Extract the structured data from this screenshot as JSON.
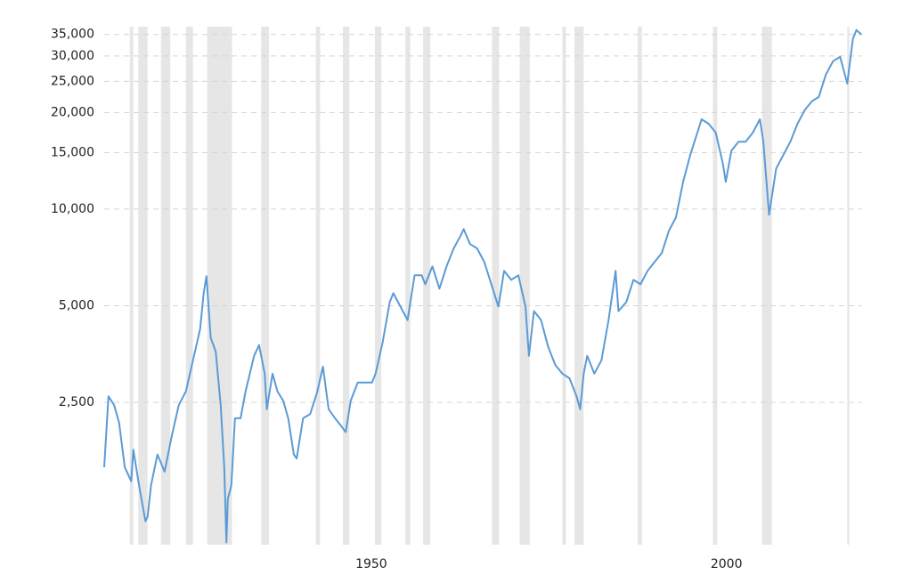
{
  "chart_data": {
    "type": "line",
    "log_scale": true,
    "grid": true,
    "recession_color": "#e6e6e6",
    "recessions": [
      [
        1916.0,
        1916.5
      ],
      [
        1917.2,
        1918.5
      ],
      [
        1920.4,
        1921.7
      ],
      [
        1923.9,
        1924.9
      ],
      [
        1926.9,
        1930.4
      ],
      [
        1934.5,
        1935.6
      ],
      [
        1942.2,
        1942.8
      ],
      [
        1946.0,
        1946.9
      ],
      [
        1950.5,
        1951.4
      ],
      [
        1954.8,
        1955.5
      ],
      [
        1957.3,
        1958.3
      ],
      [
        1967.0,
        1968.0
      ],
      [
        1970.9,
        1972.3
      ],
      [
        1976.9,
        1977.4
      ],
      [
        1978.6,
        1979.9
      ],
      [
        1987.5,
        1988.1
      ],
      [
        1998.1,
        1998.7
      ],
      [
        2005.0,
        2006.4
      ],
      [
        2017.0,
        2017.3
      ]
    ],
    "x": [
      1912.4,
      1913.0,
      1913.8,
      1914.5,
      1915.3,
      1916.2,
      1916.5,
      1917.3,
      1918.2,
      1918.5,
      1919.0,
      1919.9,
      1920.9,
      1921.9,
      1922.9,
      1923.9,
      1924.9,
      1925.9,
      1926.4,
      1926.8,
      1927.4,
      1928.1,
      1928.8,
      1929.3,
      1929.6,
      1929.8,
      1930.3,
      1930.8,
      1931.6,
      1932.3,
      1933.5,
      1934.2,
      1935.0,
      1935.3,
      1936.1,
      1936.8,
      1937.6,
      1938.3,
      1939.1,
      1939.5,
      1940.4,
      1941.4,
      1942.4,
      1943.2,
      1944.0,
      1944.9,
      1945.9,
      1946.4,
      1947.1,
      1948.1,
      1949.1,
      1950.1,
      1950.6,
      1951.6,
      1952.6,
      1953.1,
      1954.1,
      1955.1,
      1956.1,
      1957.1,
      1957.6,
      1958.6,
      1959.6,
      1960.6,
      1961.6,
      1962.6,
      1963.0,
      1963.9,
      1964.9,
      1965.9,
      1966.9,
      1967.9,
      1968.7,
      1969.7,
      1970.7,
      1971.7,
      1972.2,
      1972.9,
      1973.9,
      1974.9,
      1975.9,
      1976.9,
      1977.9,
      1978.9,
      1979.4,
      1979.9,
      1980.4,
      1981.4,
      1982.4,
      1983.4,
      1984.4,
      1984.8,
      1985.9,
      1986.9,
      1987.9,
      1988.9,
      1989.9,
      1990.9,
      1991.9,
      1992.9,
      1993.9,
      1994.9,
      1995.9,
      1996.5,
      1997.5,
      1998.5,
      1999.5,
      1999.9,
      2000.7,
      2001.7,
      2002.7,
      2003.7,
      2004.7,
      2005.2,
      2006.0,
      2007.0,
      2008.0,
      2009.0,
      2010.0,
      2011.0,
      2012.0,
      2013.0,
      2014.0,
      2015.0,
      2016.0,
      2017.0,
      2017.8,
      2018.3,
      2019.0
    ],
    "series": [
      {
        "color": "#5b9bd5",
        "values": [
          1570,
          2610,
          2450,
          2160,
          1570,
          1420,
          1780,
          1380,
          1065,
          1100,
          1380,
          1720,
          1520,
          1960,
          2450,
          2700,
          3380,
          4230,
          5470,
          6180,
          3970,
          3600,
          2450,
          1570,
          915,
          1250,
          1380,
          2230,
          2230,
          2700,
          3490,
          3770,
          3070,
          2380,
          3070,
          2700,
          2530,
          2230,
          1720,
          1670,
          2230,
          2300,
          2700,
          3230,
          2380,
          2230,
          2090,
          2020,
          2530,
          2880,
          2880,
          2880,
          3070,
          3840,
          5130,
          5470,
          4970,
          4510,
          6220,
          6220,
          5830,
          6630,
          5650,
          6630,
          7540,
          8290,
          8660,
          7780,
          7540,
          6850,
          5830,
          4970,
          6420,
          6020,
          6220,
          4970,
          3490,
          4810,
          4510,
          3720,
          3270,
          3070,
          2970,
          2610,
          2380,
          3070,
          3490,
          3070,
          3380,
          4510,
          6420,
          4810,
          5130,
          6020,
          5830,
          6420,
          6850,
          7300,
          8560,
          9430,
          12160,
          14740,
          17300,
          19040,
          18440,
          17300,
          13820,
          12160,
          15210,
          16220,
          16220,
          17300,
          19040,
          16220,
          9600,
          13380,
          14740,
          16220,
          18440,
          20300,
          21640,
          22350,
          26240,
          28880,
          29800,
          24610,
          33900,
          36140,
          35000
        ]
      }
    ],
    "xlim": [
      1912.4,
      2019.1
    ],
    "ylim": [
      900,
      37000
    ],
    "xticks": [
      1950,
      2000
    ],
    "yticks": [
      {
        "value": 2500,
        "label": "2,500"
      },
      {
        "value": 5000,
        "label": "5,000"
      },
      {
        "value": 10000,
        "label": "10,000"
      },
      {
        "value": 15000,
        "label": "15,000"
      },
      {
        "value": 20000,
        "label": "20,000"
      },
      {
        "value": 25000,
        "label": "25,000"
      },
      {
        "value": 30000,
        "label": "30,000"
      },
      {
        "value": 35000,
        "label": "35,000"
      }
    ]
  }
}
